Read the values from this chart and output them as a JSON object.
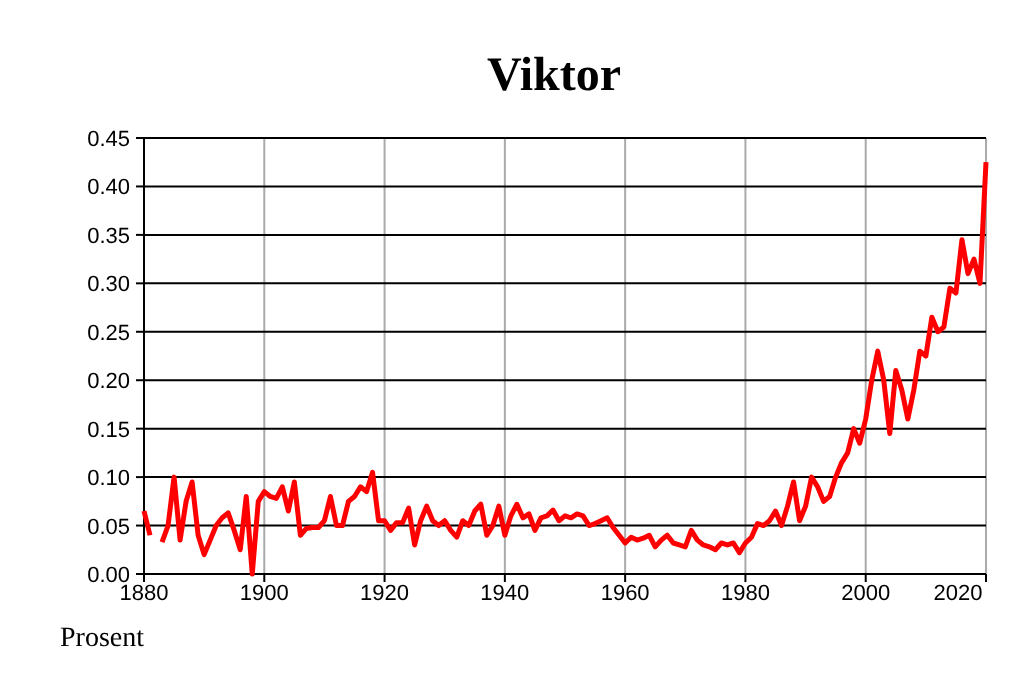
{
  "chart_data": {
    "type": "line",
    "title": "Viktor",
    "ylabel": "Prosent",
    "x": [
      1880,
      1881,
      1882,
      1883,
      1884,
      1885,
      1886,
      1887,
      1888,
      1889,
      1890,
      1891,
      1892,
      1893,
      1894,
      1895,
      1896,
      1897,
      1898,
      1899,
      1900,
      1901,
      1902,
      1903,
      1904,
      1905,
      1906,
      1907,
      1908,
      1909,
      1910,
      1911,
      1912,
      1913,
      1914,
      1915,
      1916,
      1917,
      1918,
      1919,
      1920,
      1921,
      1922,
      1923,
      1924,
      1925,
      1926,
      1927,
      1928,
      1929,
      1930,
      1931,
      1932,
      1933,
      1934,
      1935,
      1936,
      1937,
      1938,
      1939,
      1940,
      1941,
      1942,
      1943,
      1944,
      1945,
      1946,
      1947,
      1948,
      1949,
      1950,
      1951,
      1952,
      1953,
      1954,
      1955,
      1956,
      1957,
      1958,
      1959,
      1960,
      1961,
      1962,
      1963,
      1964,
      1965,
      1966,
      1967,
      1968,
      1969,
      1970,
      1971,
      1972,
      1973,
      1974,
      1975,
      1976,
      1977,
      1978,
      1979,
      1980,
      1981,
      1982,
      1983,
      1984,
      1985,
      1986,
      1987,
      1988,
      1989,
      1990,
      1991,
      1992,
      1993,
      1994,
      1995,
      1996,
      1997,
      1998,
      1999,
      2000,
      2001,
      2002,
      2003,
      2004,
      2005,
      2006,
      2007,
      2008,
      2009,
      2010,
      2011,
      2012,
      2013,
      2014,
      2015,
      2016,
      2017,
      2018,
      2019,
      2020
    ],
    "series": [
      {
        "color": "#ff0000",
        "values": [
          0.065,
          0.04,
          null,
          0.033,
          0.05,
          0.1,
          0.035,
          0.075,
          0.095,
          0.04,
          0.02,
          0.035,
          0.05,
          0.058,
          0.063,
          0.045,
          0.025,
          0.08,
          0.0,
          0.075,
          0.085,
          0.08,
          0.078,
          0.09,
          0.065,
          0.095,
          0.04,
          0.047,
          0.048,
          0.048,
          0.055,
          0.08,
          0.05,
          0.05,
          0.075,
          0.08,
          0.09,
          0.085,
          0.105,
          0.055,
          0.055,
          0.045,
          0.053,
          0.053,
          0.068,
          0.03,
          0.055,
          0.07,
          0.055,
          0.05,
          0.055,
          0.045,
          0.038,
          0.055,
          0.05,
          0.065,
          0.072,
          0.04,
          0.05,
          0.07,
          0.04,
          0.06,
          0.072,
          0.058,
          0.062,
          0.045,
          0.058,
          0.06,
          0.066,
          0.055,
          0.06,
          0.058,
          0.062,
          0.06,
          0.05,
          0.052,
          0.055,
          0.058,
          0.048,
          0.04,
          0.032,
          0.038,
          0.035,
          0.037,
          0.04,
          0.028,
          0.035,
          0.04,
          0.032,
          0.03,
          0.028,
          0.045,
          0.035,
          0.03,
          0.028,
          0.025,
          0.032,
          0.03,
          0.032,
          0.022,
          0.032,
          0.038,
          0.052,
          0.05,
          0.055,
          0.065,
          0.05,
          0.07,
          0.095,
          0.055,
          0.07,
          0.1,
          0.09,
          0.075,
          0.08,
          0.1,
          0.115,
          0.125,
          0.15,
          0.135,
          0.16,
          0.2,
          0.23,
          0.2,
          0.145,
          0.21,
          0.19,
          0.16,
          0.19,
          0.23,
          0.225,
          0.265,
          0.25,
          0.255,
          0.295,
          0.29,
          0.345,
          0.31,
          0.325,
          0.3,
          0.425
        ]
      }
    ],
    "xlim": [
      1880,
      2020
    ],
    "xticks": [
      1880,
      1900,
      1920,
      1940,
      1960,
      1980,
      2000,
      2020
    ],
    "ylim": [
      0,
      0.45
    ],
    "yticks": [
      {
        "value": 0,
        "label": "0.00"
      },
      {
        "value": 0.05,
        "label": "0.05"
      },
      {
        "value": 0.1,
        "label": "0.10"
      },
      {
        "value": 0.15,
        "label": "0.15"
      },
      {
        "value": 0.2,
        "label": "0.20"
      },
      {
        "value": 0.25,
        "label": "0.25"
      },
      {
        "value": 0.3,
        "label": "0.30"
      },
      {
        "value": 0.35,
        "label": "0.35"
      },
      {
        "value": 0.4,
        "label": "0.40"
      },
      {
        "value": 0.45,
        "label": "0.45"
      }
    ],
    "grid": true,
    "line_style": "solid",
    "marker": "none"
  }
}
